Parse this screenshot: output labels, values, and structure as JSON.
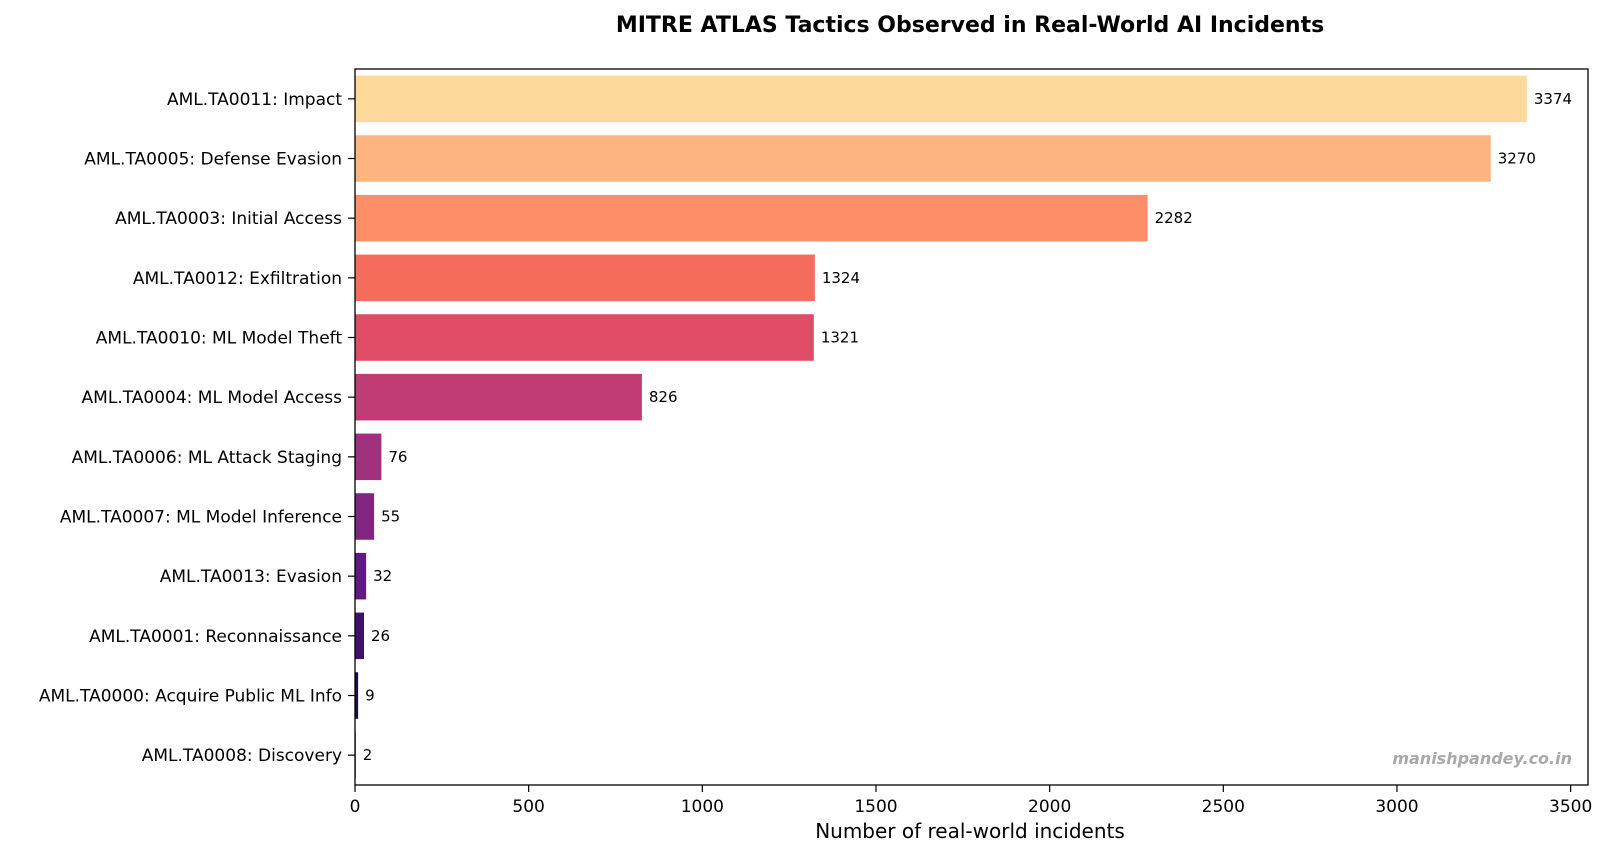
{
  "chart_data": {
    "type": "bar",
    "orientation": "horizontal",
    "title": "MITRE ATLAS Tactics Observed in Real-World AI Incidents",
    "xlabel": "Number of real-world incidents",
    "ylabel": "",
    "xlim": [
      0,
      3550
    ],
    "xticks": [
      0,
      500,
      1000,
      1500,
      2000,
      2500,
      3000,
      3500
    ],
    "grid": false,
    "legend": "none",
    "watermark": "manishpandey.co.in",
    "watermark_color": "#a9a9a9",
    "categories": [
      "AML.TA0011: Impact",
      "AML.TA0005: Defense Evasion",
      "AML.TA0003: Initial Access",
      "AML.TA0012: Exfiltration",
      "AML.TA0010: ML Model Theft",
      "AML.TA0004: ML Model Access",
      "AML.TA0006: ML Attack Staging",
      "AML.TA0007: ML Model Inference",
      "AML.TA0013: Evasion",
      "AML.TA0001: Reconnaissance",
      "AML.TA0000: Acquire Public ML Info",
      "AML.TA0008: Discovery"
    ],
    "values": [
      3374,
      3270,
      2282,
      1324,
      1321,
      826,
      76,
      55,
      32,
      26,
      9,
      2
    ],
    "data_labels": [
      "3374",
      "3270",
      "2282",
      "1324",
      "1321",
      "826",
      "76",
      "55",
      "32",
      "26",
      "9",
      "2"
    ],
    "colors": [
      "#fed99b",
      "#feb47e",
      "#fc8f68",
      "#f56b5c",
      "#e04b66",
      "#c13b75",
      "#a1307e",
      "#812581",
      "#611b7e",
      "#41106d",
      "#200b45",
      "#000004"
    ]
  }
}
